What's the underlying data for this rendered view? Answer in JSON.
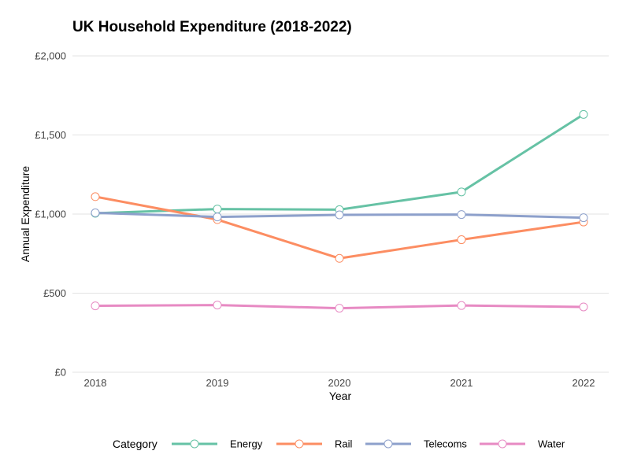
{
  "chart_data": {
    "type": "line",
    "title": "UK Household Expenditure (2018-2022)",
    "xlabel": "Year",
    "ylabel": "Annual Expenditure",
    "x": [
      "2018",
      "2019",
      "2020",
      "2021",
      "2022"
    ],
    "ylim": [
      0,
      2000
    ],
    "yticks": [
      0,
      500,
      1000,
      1500,
      2000
    ],
    "ytick_labels": [
      "£0",
      "£500",
      "£1,000",
      "£1,500",
      "£2,000"
    ],
    "grid": true,
    "legend": {
      "title": "Category",
      "position": "bottom"
    },
    "series": [
      {
        "name": "Energy",
        "color": "#66c2a5",
        "values": [
          1005,
          1032,
          1028,
          1140,
          1630
        ]
      },
      {
        "name": "Rail",
        "color": "#fc8d62",
        "values": [
          1110,
          965,
          720,
          838,
          950
        ]
      },
      {
        "name": "Telecoms",
        "color": "#8da0cb",
        "values": [
          1008,
          982,
          995,
          997,
          977
        ]
      },
      {
        "name": "Water",
        "color": "#e78ac3",
        "values": [
          420,
          425,
          405,
          422,
          413
        ]
      }
    ]
  }
}
